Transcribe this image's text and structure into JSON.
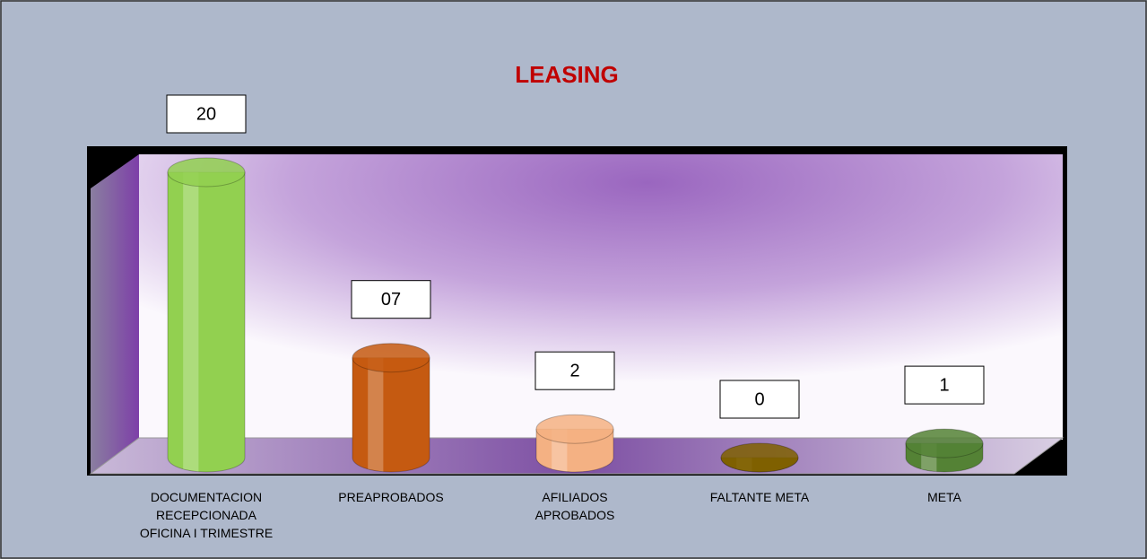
{
  "chart_data": {
    "type": "cylinder",
    "title": "LEASING",
    "categories": [
      "DOCUMENTACION RECEPCIONADA OFICINA I TRIMESTRE",
      "PREAPROBADOS",
      "AFILIADOS APROBADOS",
      "FALTANTE META",
      "META"
    ],
    "values": [
      20,
      7,
      2,
      0,
      1
    ],
    "value_labels": [
      "20",
      "07",
      "2",
      "0",
      "1"
    ],
    "colors": [
      "#92d050",
      "#c55a11",
      "#f4b183",
      "#7f6000",
      "#548235"
    ]
  }
}
